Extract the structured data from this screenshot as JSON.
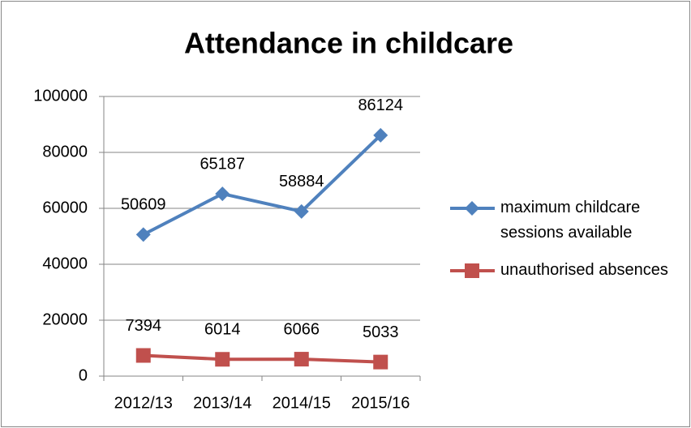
{
  "chart_data": {
    "type": "line",
    "title": "Attendance in childcare",
    "categories": [
      "2012/13",
      "2013/14",
      "2014/15",
      "2015/16"
    ],
    "series": [
      {
        "name": "maximum childcare sessions available",
        "color": "#4f81bd",
        "marker": "diamond",
        "values": [
          50609,
          65187,
          58884,
          86124
        ]
      },
      {
        "name": "unauthorised absences",
        "color": "#c0504d",
        "marker": "square",
        "values": [
          7394,
          6014,
          6066,
          5033
        ]
      }
    ],
    "ylim": [
      0,
      100000
    ],
    "yticks": [
      0,
      20000,
      40000,
      60000,
      80000,
      100000
    ],
    "grid": true,
    "legend": "right"
  }
}
